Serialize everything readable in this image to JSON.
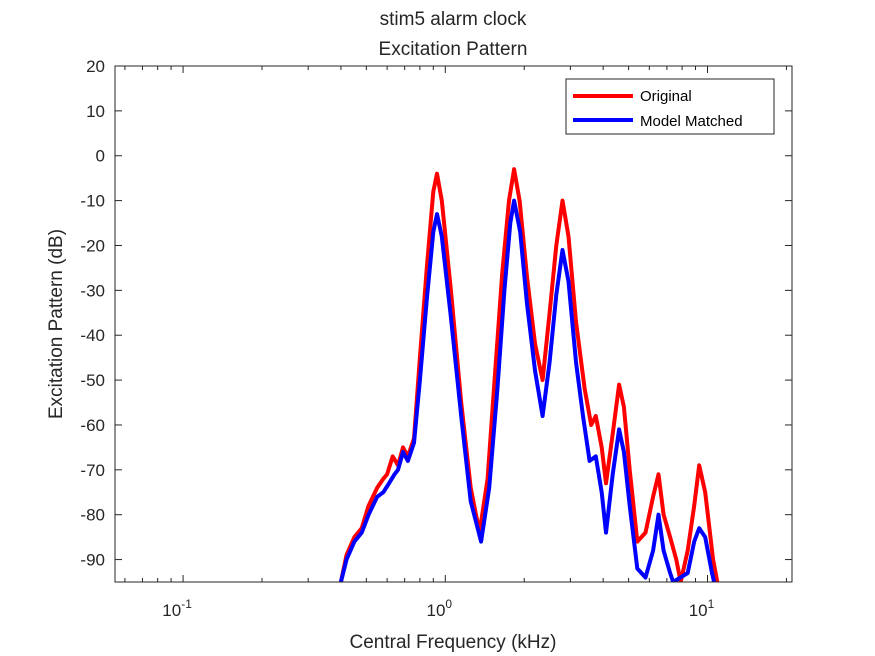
{
  "chart_data": {
    "type": "line",
    "title": "stim5 alarm clock",
    "subtitle": "Excitation Pattern",
    "xlabel": "Central Frequency (kHz)",
    "ylabel": "Excitation Pattern (dB)",
    "xscale": "log",
    "xlim": [
      0.055,
      21
    ],
    "ylim": [
      -95,
      20
    ],
    "yticks": [
      20,
      10,
      0,
      -10,
      -20,
      -30,
      -40,
      -50,
      -60,
      -70,
      -80,
      -90
    ],
    "xticks": [
      {
        "value": 0.1,
        "base": "10",
        "exp": "-1"
      },
      {
        "value": 1,
        "base": "10",
        "exp": "0"
      },
      {
        "value": 10,
        "base": "10",
        "exp": "1"
      }
    ],
    "grid": false,
    "legend_position": "top-right",
    "series": [
      {
        "name": "Original",
        "color": "#ff0000",
        "points": [
          [
            0.4,
            -95
          ],
          [
            0.42,
            -89
          ],
          [
            0.45,
            -85
          ],
          [
            0.48,
            -83
          ],
          [
            0.51,
            -78
          ],
          [
            0.55,
            -74
          ],
          [
            0.58,
            -72
          ],
          [
            0.6,
            -71
          ],
          [
            0.63,
            -67
          ],
          [
            0.66,
            -69
          ],
          [
            0.69,
            -65
          ],
          [
            0.72,
            -67
          ],
          [
            0.76,
            -63
          ],
          [
            0.8,
            -45
          ],
          [
            0.85,
            -25
          ],
          [
            0.9,
            -8
          ],
          [
            0.93,
            -4
          ],
          [
            0.97,
            -10
          ],
          [
            1.05,
            -30
          ],
          [
            1.15,
            -55
          ],
          [
            1.25,
            -74
          ],
          [
            1.35,
            -84
          ],
          [
            1.45,
            -72
          ],
          [
            1.55,
            -48
          ],
          [
            1.65,
            -26
          ],
          [
            1.75,
            -10
          ],
          [
            1.83,
            -3
          ],
          [
            1.92,
            -10
          ],
          [
            2.05,
            -27
          ],
          [
            2.2,
            -42
          ],
          [
            2.35,
            -50
          ],
          [
            2.5,
            -35
          ],
          [
            2.65,
            -20
          ],
          [
            2.8,
            -10
          ],
          [
            2.95,
            -18
          ],
          [
            3.15,
            -37
          ],
          [
            3.4,
            -52
          ],
          [
            3.6,
            -60
          ],
          [
            3.75,
            -58
          ],
          [
            3.95,
            -65
          ],
          [
            4.1,
            -73
          ],
          [
            4.35,
            -62
          ],
          [
            4.6,
            -51
          ],
          [
            4.8,
            -56
          ],
          [
            5.05,
            -70
          ],
          [
            5.4,
            -86
          ],
          [
            5.8,
            -84
          ],
          [
            6.2,
            -76
          ],
          [
            6.5,
            -71
          ],
          [
            6.8,
            -80
          ],
          [
            7.2,
            -85
          ],
          [
            7.6,
            -90
          ],
          [
            7.9,
            -95
          ],
          [
            8.4,
            -88
          ],
          [
            8.9,
            -78
          ],
          [
            9.3,
            -69
          ],
          [
            9.8,
            -75
          ],
          [
            10.5,
            -90
          ],
          [
            10.9,
            -95
          ]
        ]
      },
      {
        "name": "Model Matched",
        "color": "#0000ff",
        "points": [
          [
            0.4,
            -95
          ],
          [
            0.42,
            -90
          ],
          [
            0.45,
            -86
          ],
          [
            0.48,
            -84
          ],
          [
            0.51,
            -80
          ],
          [
            0.55,
            -76
          ],
          [
            0.58,
            -75
          ],
          [
            0.61,
            -73
          ],
          [
            0.64,
            -71
          ],
          [
            0.66,
            -70
          ],
          [
            0.69,
            -66
          ],
          [
            0.72,
            -68
          ],
          [
            0.76,
            -64
          ],
          [
            0.8,
            -50
          ],
          [
            0.85,
            -32
          ],
          [
            0.9,
            -17
          ],
          [
            0.93,
            -13
          ],
          [
            0.97,
            -18
          ],
          [
            1.05,
            -36
          ],
          [
            1.15,
            -58
          ],
          [
            1.25,
            -77
          ],
          [
            1.37,
            -86
          ],
          [
            1.47,
            -74
          ],
          [
            1.58,
            -52
          ],
          [
            1.68,
            -30
          ],
          [
            1.77,
            -15
          ],
          [
            1.83,
            -10
          ],
          [
            1.93,
            -17
          ],
          [
            2.05,
            -33
          ],
          [
            2.2,
            -48
          ],
          [
            2.35,
            -58
          ],
          [
            2.5,
            -46
          ],
          [
            2.65,
            -31
          ],
          [
            2.8,
            -21
          ],
          [
            2.95,
            -28
          ],
          [
            3.15,
            -46
          ],
          [
            3.35,
            -58
          ],
          [
            3.55,
            -68
          ],
          [
            3.75,
            -67
          ],
          [
            3.95,
            -75
          ],
          [
            4.1,
            -84
          ],
          [
            4.35,
            -71
          ],
          [
            4.6,
            -61
          ],
          [
            4.8,
            -66
          ],
          [
            5.05,
            -78
          ],
          [
            5.4,
            -92
          ],
          [
            5.8,
            -94
          ],
          [
            6.2,
            -88
          ],
          [
            6.5,
            -80
          ],
          [
            6.8,
            -88
          ],
          [
            7.2,
            -93
          ],
          [
            7.4,
            -95
          ],
          [
            8.4,
            -93
          ],
          [
            8.9,
            -86
          ],
          [
            9.3,
            -83
          ],
          [
            9.8,
            -85
          ],
          [
            10.4,
            -93
          ],
          [
            10.6,
            -95
          ]
        ]
      }
    ]
  }
}
